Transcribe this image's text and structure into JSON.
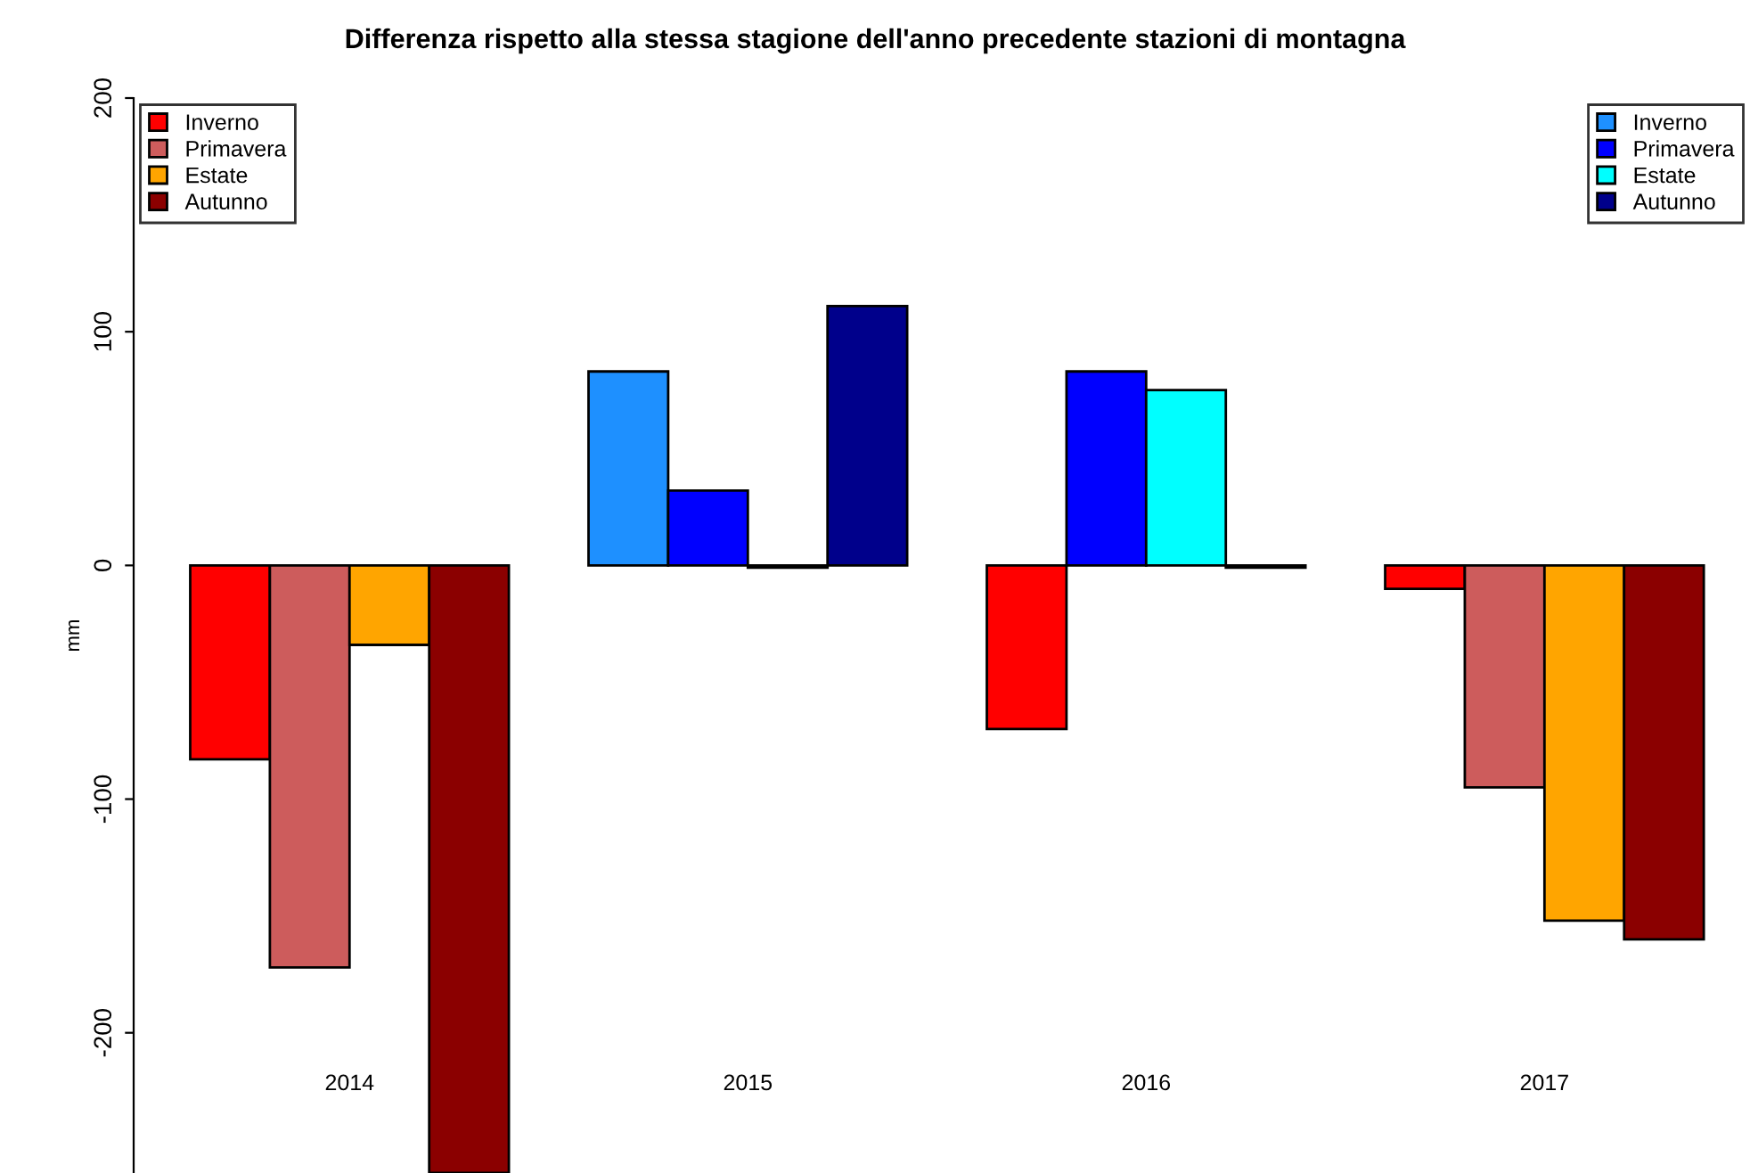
{
  "chart_data": {
    "type": "bar",
    "title": "Differenza rispetto alla stessa stagione dell'anno precedente stazioni di montagna",
    "ylabel": "mm",
    "categories": [
      "2014",
      "2015",
      "2016",
      "2017"
    ],
    "series": [
      {
        "name": "Inverno",
        "values": [
          -83,
          83,
          -70,
          -10
        ],
        "colors": [
          "#ff0000",
          "#1e90ff",
          "#ff0000",
          "#ff0000"
        ]
      },
      {
        "name": "Primavera",
        "values": [
          -172,
          32,
          83,
          -95
        ],
        "colors": [
          "#cd5c5c",
          "#0000ff",
          "#0000ff",
          "#cd5c5c"
        ]
      },
      {
        "name": "Estate",
        "values": [
          -34,
          -1,
          75,
          -152
        ],
        "colors": [
          "#ffa500",
          "#ffa500",
          "#00ffff",
          "#ffa500"
        ]
      },
      {
        "name": "Autunno",
        "values": [
          -260,
          111,
          -1,
          -160
        ],
        "colors": [
          "#8b0000",
          "#00008b",
          "#8b0000",
          "#8b0000"
        ]
      }
    ],
    "ylim": [
      -260,
      200
    ],
    "yticks": [
      -200,
      -100,
      0,
      100,
      200
    ],
    "legend": "top",
    "grid": false
  }
}
